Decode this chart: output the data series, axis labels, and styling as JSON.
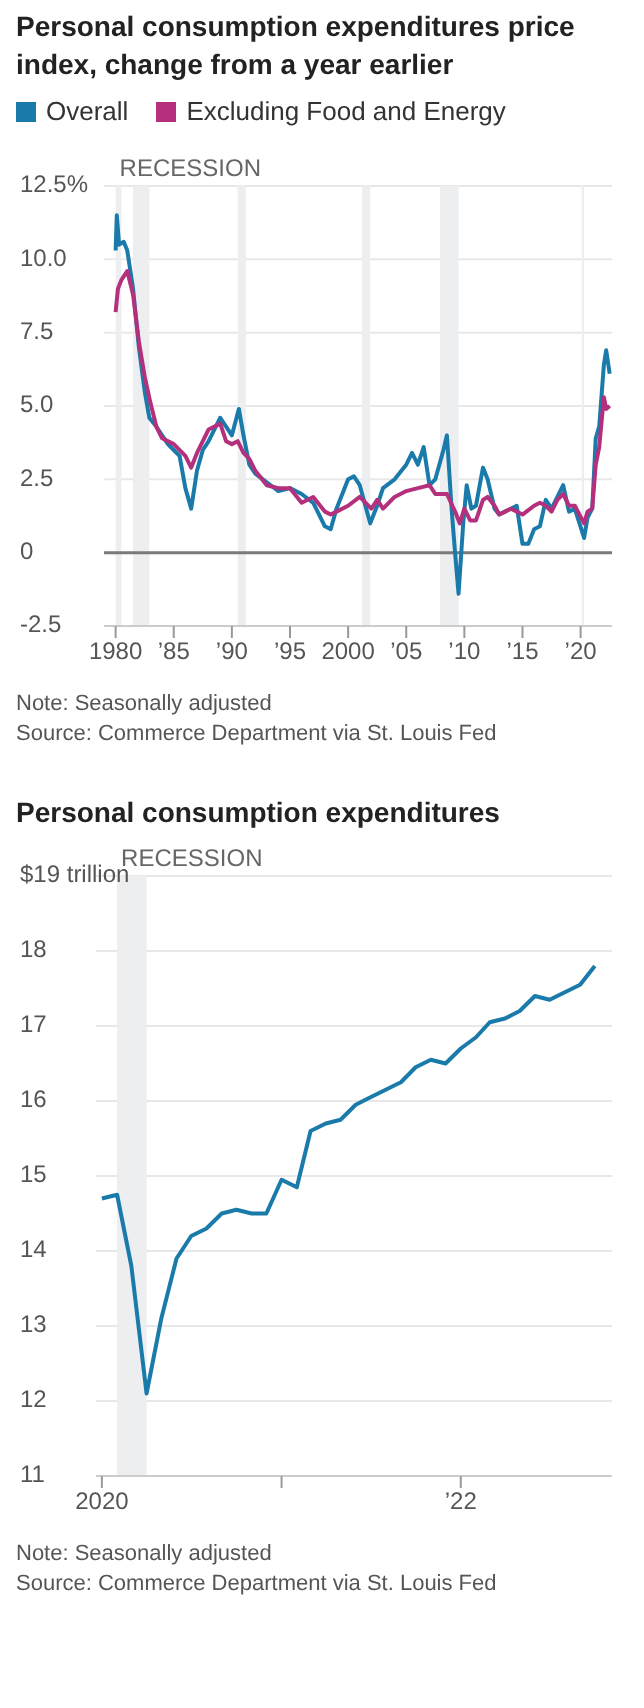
{
  "chart_data": [
    {
      "type": "line",
      "title": "Personal consumption expenditures price index, change from a year earlier",
      "legend": "top left",
      "grid": "y",
      "marker": "none",
      "line_style": "solid",
      "xlim": [
        1979,
        2022.7
      ],
      "xticks": [
        1980,
        {
          "value": 1985,
          "label": "’85"
        },
        {
          "value": 1990,
          "label": "’90"
        },
        {
          "value": 1995,
          "label": "’95"
        },
        {
          "value": 2000,
          "label": "2000"
        },
        {
          "value": 2005,
          "label": "’05"
        },
        {
          "value": 2010,
          "label": "’10"
        },
        {
          "value": 2015,
          "label": "’15"
        },
        {
          "value": 2020,
          "label": "’20"
        }
      ],
      "ylim": [
        -2.5,
        12.5
      ],
      "yticks": [
        -2.5,
        0,
        2.5,
        {
          "value": 5,
          "label": "5.0"
        },
        7.5,
        {
          "value": 10,
          "label": "10.0"
        },
        {
          "value": 12.5,
          "label": "12.5%"
        }
      ],
      "ref_lines": [
        {
          "axis": "y",
          "value": 0,
          "color": "#7a7a7a"
        }
      ],
      "bands": [
        {
          "axis": "x",
          "from": 1980.0,
          "to": 1980.5,
          "label": "RECESSION",
          "color": "#eceef0"
        },
        {
          "axis": "x",
          "from": 1981.5,
          "to": 1982.9,
          "color": "#eceef0"
        },
        {
          "axis": "x",
          "from": 1990.5,
          "to": 1991.2,
          "color": "#eceef0"
        },
        {
          "axis": "x",
          "from": 2001.2,
          "to": 2001.9,
          "color": "#eceef0"
        },
        {
          "axis": "x",
          "from": 2007.9,
          "to": 2009.5,
          "color": "#eceef0"
        },
        {
          "axis": "x",
          "from": 2020.1,
          "to": 2020.3,
          "color": "#eceef0"
        }
      ],
      "series": [
        {
          "name": "Overall",
          "color": "#1a7bab",
          "x": [
            1980.0,
            1980.1,
            1980.3,
            1980.7,
            1981.0,
            1981.5,
            1982.0,
            1982.5,
            1982.9,
            1983.5,
            1984,
            1984.5,
            1985,
            1985.5,
            1986,
            1986.5,
            1987,
            1987.5,
            1988,
            1988.5,
            1989,
            1989.5,
            1990,
            1990.6,
            1991,
            1991.5,
            1992,
            1993,
            1994,
            1995,
            1996,
            1997,
            1998,
            1998.5,
            1999,
            2000,
            2000.5,
            2001,
            2001.9,
            2002.5,
            2003,
            2004,
            2005,
            2005.5,
            2006,
            2006.5,
            2007,
            2007.5,
            2008.2,
            2008.5,
            2008.9,
            2009.2,
            2009.5,
            2009.9,
            2010.2,
            2010.6,
            2011,
            2011.6,
            2012,
            2012.6,
            2013,
            2013.5,
            2014,
            2014.5,
            2015,
            2015.5,
            2016,
            2016.5,
            2017,
            2017.5,
            2018,
            2018.5,
            2019,
            2019.5,
            2020.3,
            2020.6,
            2021,
            2021.3,
            2021.6,
            2022,
            2022.2,
            2022.5
          ],
          "values": [
            10.3,
            11.5,
            10.5,
            10.6,
            10.3,
            9.0,
            7.0,
            5.5,
            4.6,
            4.3,
            4.0,
            3.7,
            3.5,
            3.3,
            2.2,
            1.5,
            2.8,
            3.5,
            3.8,
            4.2,
            4.6,
            4.3,
            4.0,
            4.9,
            4.0,
            3.0,
            2.7,
            2.4,
            2.1,
            2.2,
            2.0,
            1.7,
            0.9,
            0.8,
            1.5,
            2.5,
            2.6,
            2.3,
            1.0,
            1.6,
            2.2,
            2.5,
            3.0,
            3.4,
            3.0,
            3.6,
            2.3,
            2.5,
            3.5,
            4.0,
            1.5,
            0.0,
            -1.4,
            1.0,
            2.3,
            1.5,
            1.6,
            2.9,
            2.5,
            1.5,
            1.3,
            1.4,
            1.5,
            1.6,
            0.3,
            0.3,
            0.8,
            0.9,
            1.8,
            1.5,
            1.9,
            2.3,
            1.4,
            1.5,
            0.5,
            1.2,
            1.5,
            3.9,
            4.3,
            6.4,
            6.9,
            6.1
          ]
        },
        {
          "name": "Excluding Food and Energy",
          "color": "#b5307c",
          "x": [
            1980.0,
            1980.2,
            1980.5,
            1981,
            1981.5,
            1982,
            1982.5,
            1983,
            1983.5,
            1984,
            1985,
            1986,
            1986.5,
            1987,
            1988,
            1989,
            1989.5,
            1990,
            1990.5,
            1991,
            1991.5,
            1992,
            1993,
            1994,
            1995,
            1996,
            1997,
            1998,
            1998.5,
            1999,
            2000,
            2001,
            2002,
            2002.5,
            2003,
            2004,
            2005,
            2006,
            2007,
            2007.5,
            2008.5,
            2009.2,
            2009.6,
            2010,
            2010.5,
            2011,
            2011.6,
            2012,
            2012.6,
            2013,
            2013.5,
            2014,
            2015,
            2016,
            2016.5,
            2017,
            2017.5,
            2018,
            2018.5,
            2019,
            2019.5,
            2020.3,
            2020.6,
            2021,
            2021.3,
            2021.6,
            2022,
            2022.2,
            2022.5
          ],
          "values": [
            8.2,
            9.0,
            9.3,
            9.6,
            8.8,
            7.2,
            6.0,
            5.1,
            4.3,
            3.9,
            3.7,
            3.3,
            2.9,
            3.4,
            4.2,
            4.4,
            3.8,
            3.7,
            3.8,
            3.4,
            3.2,
            2.8,
            2.3,
            2.2,
            2.2,
            1.7,
            1.9,
            1.4,
            1.3,
            1.4,
            1.6,
            1.9,
            1.5,
            1.8,
            1.5,
            1.9,
            2.1,
            2.2,
            2.3,
            2.0,
            2.0,
            1.4,
            1.0,
            1.5,
            1.1,
            1.1,
            1.8,
            1.9,
            1.6,
            1.3,
            1.4,
            1.5,
            1.3,
            1.6,
            1.7,
            1.6,
            1.4,
            1.8,
            2.0,
            1.6,
            1.6,
            1.0,
            1.4,
            1.5,
            3.0,
            3.6,
            5.3,
            4.9,
            5.0
          ]
        }
      ],
      "annotations": [
        "Note: Seasonally adjusted",
        "Source: Commerce Department via St. Louis Fed"
      ]
    },
    {
      "type": "line",
      "title": "Personal consumption expenditures",
      "grid": "y",
      "marker": "none",
      "line_style": "solid",
      "xlim": [
        "2019-12-20",
        "2022-11-05"
      ],
      "xticks": [
        {
          "value": "2020-01-01",
          "label": "2020"
        },
        {
          "value": "2021-01-01",
          "label": null
        },
        {
          "value": "2022-01-01",
          "label": "’22"
        }
      ],
      "ylim": [
        11,
        19
      ],
      "yticks": [
        11,
        12,
        13,
        14,
        15,
        16,
        17,
        18,
        {
          "value": 19,
          "label": "$19 trillion"
        }
      ],
      "bands": [
        {
          "axis": "x",
          "from": "2020-02",
          "to": "2020-04",
          "label": "RECESSION",
          "color": "#eceef0"
        }
      ],
      "x": [
        "2020-01",
        "2020-02",
        "2020-03",
        "2020-04",
        "2020-05",
        "2020-06",
        "2020-07",
        "2020-08",
        "2020-09",
        "2020-10",
        "2020-11",
        "2020-12",
        "2021-01",
        "2021-02",
        "2021-03",
        "2021-04",
        "2021-05",
        "2021-06",
        "2021-07",
        "2021-08",
        "2021-09",
        "2021-10",
        "2021-11",
        "2021-12",
        "2022-01",
        "2022-02",
        "2022-03",
        "2022-04",
        "2022-05",
        "2022-06",
        "2022-07",
        "2022-08",
        "2022-09",
        "2022-10"
      ],
      "series": [
        {
          "color": "#1a7bab",
          "values": [
            14.7,
            14.75,
            13.8,
            12.1,
            13.1,
            13.9,
            14.2,
            14.3,
            14.5,
            14.55,
            14.5,
            14.5,
            14.95,
            14.85,
            15.6,
            15.7,
            15.75,
            15.95,
            16.05,
            16.15,
            16.25,
            16.45,
            16.55,
            16.5,
            16.7,
            16.85,
            17.05,
            17.1,
            17.2,
            17.4,
            17.35,
            17.45,
            17.55,
            17.8
          ]
        }
      ],
      "annotations": [
        "Note: Seasonally adjusted",
        "Source: Commerce Department via St. Louis Fed"
      ]
    }
  ]
}
